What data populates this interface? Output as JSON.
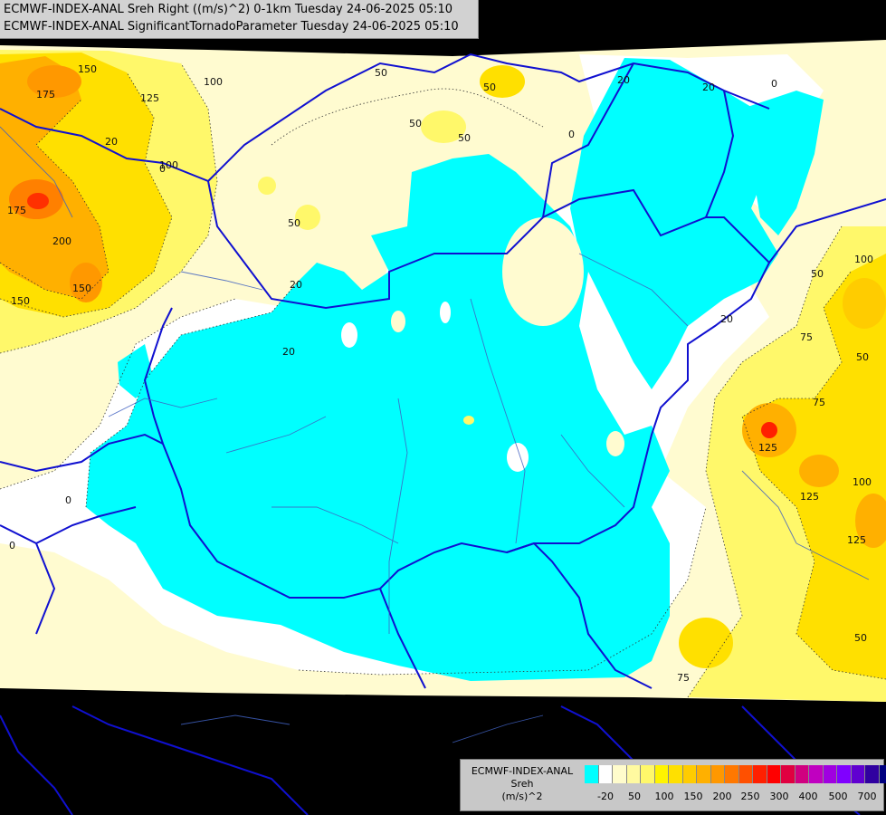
{
  "header": {
    "line1": "ECMWF-INDEX-ANAL Sreh Right ((m/s)^2) 0-1km Tuesday 24-06-2025 05:10",
    "line2": "ECMWF-INDEX-ANAL SignificantTornadoParameter Tuesday 24-06-2025 05:10"
  },
  "legend": {
    "title1": "ECMWF-INDEX-ANAL",
    "title2": "Sreh",
    "unit": "(m/s)^2",
    "colors": [
      "#00ffff",
      "#ffffff",
      "#fffccc",
      "#fffaa0",
      "#fff86a",
      "#fff400",
      "#ffe000",
      "#ffcc00",
      "#ffb000",
      "#ff9800",
      "#ff7800",
      "#ff5000",
      "#ff2000",
      "#ff0000",
      "#e00040",
      "#d00080",
      "#c000c0",
      "#a000e0",
      "#8000ff",
      "#6000d0",
      "#3000a0",
      "#000080"
    ],
    "ticks": [
      "-20",
      "50",
      "100",
      "150",
      "200",
      "250",
      "300",
      "400",
      "500",
      "700"
    ]
  },
  "contour_labels": [
    "150",
    "175",
    "125",
    "100",
    "100",
    "175",
    "200",
    "150",
    "150",
    "50",
    "50",
    "50",
    "20",
    "20",
    "20",
    "0",
    "0",
    "20",
    "20",
    "0",
    "0",
    "50",
    "50",
    "100",
    "75",
    "50",
    "75",
    "125",
    "100",
    "125",
    "125",
    "50",
    "75",
    "20",
    "0",
    "50"
  ]
}
